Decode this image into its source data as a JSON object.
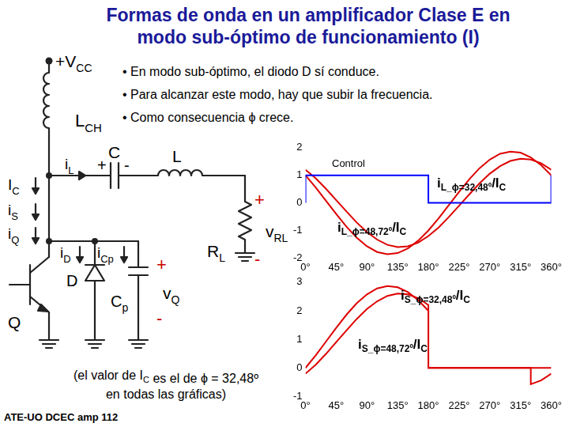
{
  "title": [
    "Formas de onda en un amplificador Clase E en",
    "modo sub-óptimo de funcionamiento (I)"
  ],
  "bullets": [
    "• En modo sub-óptimo, el diodo D sí conduce.",
    "• Para alcanzar este modo, hay que subir la frecuencia.",
    "• Como consecuencia ϕ crece."
  ],
  "circuit": {
    "vcc": {
      "text": "+V",
      "sub": "CC"
    },
    "lch": {
      "text": "L",
      "sub": "CH"
    },
    "ic": {
      "text": "I",
      "sub": "C"
    },
    "il": {
      "text": "i",
      "sub": "L"
    },
    "c": {
      "text": "C"
    },
    "l": {
      "text": "L"
    },
    "is": {
      "text": "i",
      "sub": "S"
    },
    "iq": {
      "text": "i",
      "sub": "Q"
    },
    "id": {
      "text": "i",
      "sub": "D"
    },
    "icp": {
      "text": "i",
      "sub": "Cp"
    },
    "rl": {
      "text": "R",
      "sub": "L"
    },
    "vrl": {
      "text": "v",
      "sub": "RL"
    },
    "d": {
      "text": "D"
    },
    "cp": {
      "text": "C",
      "sub": "p"
    },
    "vq": {
      "text": "v",
      "sub": "Q"
    },
    "q": {
      "text": "Q"
    },
    "plus": "+",
    "minus": "-"
  },
  "note": [
    [
      {
        "text": "(el valor de I",
        "sub": "C"
      },
      {
        "text": " es el de ϕ = 32,48º"
      }
    ],
    [
      {
        "text": "en todas las gráficas)"
      }
    ]
  ],
  "footer": "ATE-UO DCEC amp 112",
  "chart_data": [
    {
      "type": "line",
      "xlim": [
        0,
        360
      ],
      "xticks": [
        {
          "value": 0,
          "label": "0°"
        },
        {
          "value": 45,
          "label": "45°"
        },
        {
          "value": 90,
          "label": "90°"
        },
        {
          "value": 135,
          "label": "135°"
        },
        {
          "value": 180,
          "label": "180°"
        },
        {
          "value": 225,
          "label": "225°"
        },
        {
          "value": 270,
          "label": "270°"
        },
        {
          "value": 315,
          "label": "315°"
        },
        {
          "value": 360,
          "label": "360°"
        }
      ],
      "ylim": [
        -2,
        2
      ],
      "yticks": [
        -2,
        -1,
        0,
        1,
        2
      ],
      "grid": false,
      "series": [
        {
          "name": "Control",
          "color": "#0000ff",
          "x": [
            0,
            0,
            180,
            180,
            360,
            360
          ],
          "values": [
            0,
            1,
            1,
            0,
            0,
            1
          ]
        },
        {
          "name": "iL_ϕ=32,48º/IC",
          "color": "#dd0000",
          "x": [
            0,
            15,
            30,
            45,
            60,
            75,
            90,
            105,
            120,
            135,
            150,
            165,
            180,
            195,
            210,
            225,
            240,
            255,
            270,
            285,
            300,
            315,
            330,
            345,
            360
          ],
          "values": [
            1.0,
            0.56,
            0.08,
            -0.4,
            -0.86,
            -1.26,
            -1.57,
            -1.78,
            -1.86,
            -1.82,
            -1.65,
            -1.37,
            -1.0,
            -0.56,
            -0.08,
            0.4,
            0.86,
            1.26,
            1.57,
            1.78,
            1.86,
            1.82,
            1.65,
            1.37,
            1.0
          ]
        },
        {
          "name": "iL_ϕ=48,72º/IC",
          "color": "#dd0000",
          "x": [
            0,
            15,
            30,
            45,
            60,
            75,
            90,
            105,
            120,
            135,
            150,
            165,
            180,
            195,
            210,
            225,
            240,
            255,
            270,
            285,
            300,
            315,
            330,
            345,
            360
          ],
          "values": [
            1.2,
            0.89,
            0.51,
            0.1,
            -0.31,
            -0.71,
            -1.06,
            -1.33,
            -1.52,
            -1.6,
            -1.57,
            -1.44,
            -1.2,
            -0.89,
            -0.51,
            -0.1,
            0.31,
            0.71,
            1.06,
            1.33,
            1.52,
            1.6,
            1.57,
            1.44,
            1.2
          ]
        }
      ]
    },
    {
      "type": "line",
      "xlim": [
        0,
        360
      ],
      "xticks": [
        {
          "value": 0,
          "label": "0°"
        },
        {
          "value": 45,
          "label": "45°"
        },
        {
          "value": 90,
          "label": "90°"
        },
        {
          "value": 135,
          "label": "135°"
        },
        {
          "value": 180,
          "label": "180°"
        },
        {
          "value": 225,
          "label": "225°"
        },
        {
          "value": 270,
          "label": "270°"
        },
        {
          "value": 315,
          "label": "315°"
        },
        {
          "value": 360,
          "label": "360°"
        }
      ],
      "ylim": [
        -1,
        3
      ],
      "yticks": [
        -1,
        0,
        1,
        2,
        3
      ],
      "grid": false,
      "series": [
        {
          "name": "iS_ϕ=32,48º/IC",
          "color": "#dd0000",
          "x": [
            0,
            15,
            30,
            45,
            60,
            75,
            90,
            105,
            120,
            135,
            150,
            165,
            180,
            180,
            360
          ],
          "values": [
            0.0,
            0.44,
            0.92,
            1.4,
            1.86,
            2.26,
            2.57,
            2.78,
            2.86,
            2.82,
            2.65,
            2.37,
            2.0,
            0,
            0
          ]
        },
        {
          "name": "iS_ϕ=48,72º/IC",
          "color": "#dd0000",
          "x": [
            0,
            15,
            30,
            45,
            60,
            75,
            90,
            105,
            120,
            135,
            150,
            165,
            180,
            180,
            330,
            330,
            345,
            360
          ],
          "values": [
            -0.2,
            0.11,
            0.49,
            0.9,
            1.31,
            1.71,
            2.06,
            2.33,
            2.52,
            2.6,
            2.57,
            2.44,
            2.2,
            0,
            0,
            -0.57,
            -0.44,
            -0.2
          ]
        }
      ]
    }
  ]
}
